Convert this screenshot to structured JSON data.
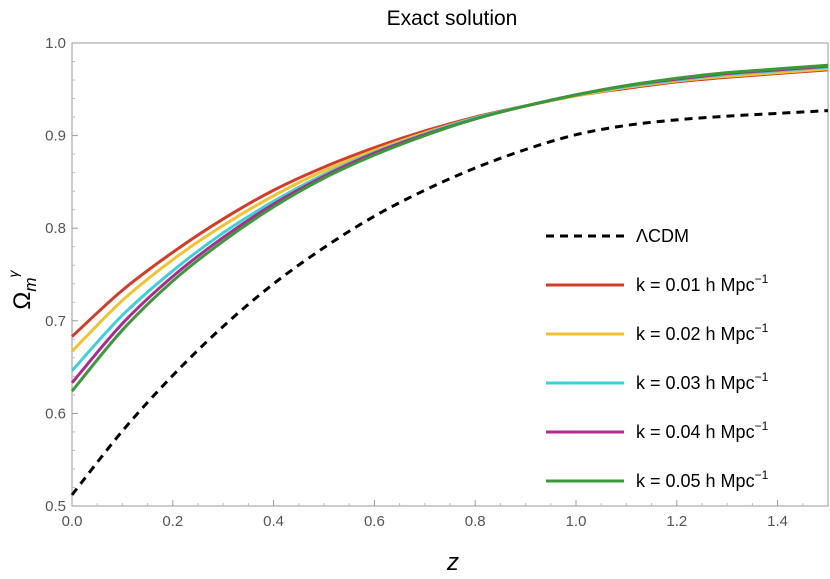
{
  "chart_data": {
    "type": "line",
    "title": "Exact solution",
    "xlabel": "z",
    "ylabel": {
      "base": "Ω",
      "sub": "m",
      "sup": "γ"
    },
    "xlim": [
      0,
      1.5
    ],
    "ylim": [
      0.5,
      1.0
    ],
    "x_ticks": [
      "0.0",
      "0.2",
      "0.4",
      "0.6",
      "0.8",
      "1.0",
      "1.2",
      "1.4"
    ],
    "x_tick_values": [
      0,
      0.2,
      0.4,
      0.6,
      0.8,
      1.0,
      1.2,
      1.4
    ],
    "y_ticks": [
      "0.5",
      "0.6",
      "0.7",
      "0.8",
      "0.9",
      "1.0"
    ],
    "y_tick_values": [
      0.5,
      0.6,
      0.7,
      0.8,
      0.9,
      1.0
    ],
    "grid": false,
    "legend_position": "center-right",
    "x": [
      0.0,
      0.1,
      0.2,
      0.3,
      0.4,
      0.5,
      0.6,
      0.7,
      0.8,
      0.9,
      1.0,
      1.1,
      1.2,
      1.3,
      1.4,
      1.5
    ],
    "series": [
      {
        "name": "ΛCDM",
        "label_main": "ΛCDM",
        "label_sup": "",
        "color": "#000000",
        "dashed": true,
        "values": [
          0.512,
          0.581,
          0.641,
          0.694,
          0.74,
          0.779,
          0.813,
          0.841,
          0.865,
          0.885,
          0.901,
          0.911,
          0.917,
          0.921,
          0.924,
          0.927
        ]
      },
      {
        "name": "k = 0.01 h Mpc^-1",
        "label_main": "k = 0.01 h Mpc",
        "label_sup": "−1",
        "color": "#d23c2a",
        "dashed": false,
        "values": [
          0.683,
          0.733,
          0.774,
          0.81,
          0.841,
          0.866,
          0.887,
          0.905,
          0.92,
          0.932,
          0.943,
          0.951,
          0.958,
          0.963,
          0.967,
          0.971
        ]
      },
      {
        "name": "k = 0.02 h Mpc^-1",
        "label_main": "k = 0.02 h Mpc",
        "label_sup": "−1",
        "color": "#f2c12e",
        "dashed": false,
        "values": [
          0.667,
          0.722,
          0.766,
          0.803,
          0.835,
          0.862,
          0.884,
          0.903,
          0.919,
          0.932,
          0.943,
          0.952,
          0.959,
          0.964,
          0.968,
          0.972
        ]
      },
      {
        "name": "k = 0.03 h Mpc^-1",
        "label_main": "k = 0.03 h Mpc",
        "label_sup": "−1",
        "color": "#3fd0d6",
        "dashed": false,
        "values": [
          0.646,
          0.706,
          0.754,
          0.795,
          0.829,
          0.858,
          0.882,
          0.902,
          0.919,
          0.932,
          0.944,
          0.953,
          0.96,
          0.966,
          0.97,
          0.974
        ]
      },
      {
        "name": "k = 0.04 h Mpc^-1",
        "label_main": "k = 0.04 h Mpc",
        "label_sup": "−1",
        "color": "#b0298e",
        "dashed": false,
        "values": [
          0.633,
          0.697,
          0.748,
          0.79,
          0.826,
          0.856,
          0.881,
          0.901,
          0.918,
          0.932,
          0.944,
          0.954,
          0.961,
          0.967,
          0.971,
          0.975
        ]
      },
      {
        "name": "k = 0.05 h Mpc^-1",
        "label_main": "k = 0.05 h Mpc",
        "label_sup": "−1",
        "color": "#3a9a3a",
        "dashed": false,
        "values": [
          0.624,
          0.69,
          0.743,
          0.786,
          0.823,
          0.854,
          0.879,
          0.9,
          0.918,
          0.932,
          0.944,
          0.954,
          0.962,
          0.968,
          0.972,
          0.976
        ]
      }
    ]
  }
}
